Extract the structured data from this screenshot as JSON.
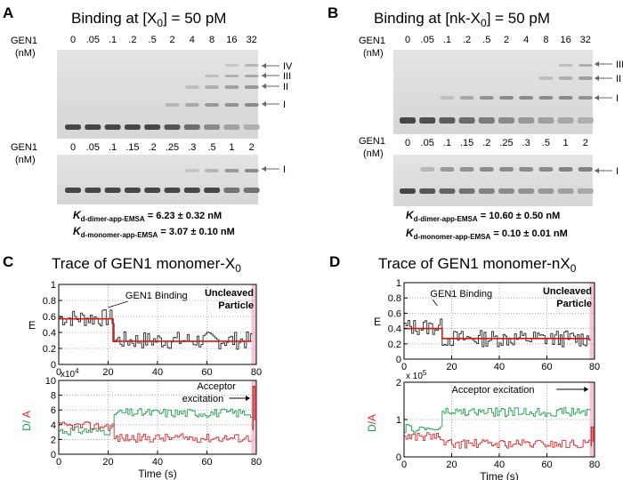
{
  "panels": {
    "A": {
      "letter": "A",
      "title": "Binding at [X",
      "title_sub": "0",
      "title_tail": "] = 50 pM",
      "row_label_1": "GEN1",
      "row_label_2": "(nM)",
      "top_lanes": [
        "0",
        ".05",
        ".1",
        ".2",
        ".5",
        "2",
        "4",
        "8",
        "16",
        "32"
      ],
      "bottom_lanes": [
        "0",
        ".05",
        ".1",
        ".15",
        ".2",
        ".25",
        ".3",
        ".5",
        "1",
        "2"
      ],
      "top_markers": [
        "IV",
        "III",
        "II",
        "I"
      ],
      "bottom_markers": [
        "I"
      ],
      "kd1_prefix": "K",
      "kd1_sub": "d-dimer-app-EMSA",
      "kd1_val": " = 6.23 ± 0.32 nM",
      "kd2_prefix": "K",
      "kd2_sub": "d-monomer-app-EMSA",
      "kd2_val": " = 3.07 ± 0.10 nM"
    },
    "B": {
      "letter": "B",
      "title": "Binding at [nk-X",
      "title_sub": "0",
      "title_tail": "] = 50 pM",
      "row_label_1": "GEN1",
      "row_label_2": "(nM)",
      "top_lanes": [
        "0",
        ".05",
        ".1",
        ".2",
        ".5",
        "2",
        "4",
        "8",
        "16",
        "32"
      ],
      "bottom_lanes": [
        "0",
        ".05",
        ".1",
        ".15",
        ".2",
        ".25",
        ".3",
        ".5",
        "1",
        "2"
      ],
      "top_markers": [
        "III",
        "II",
        "I"
      ],
      "bottom_markers": [
        "I"
      ],
      "kd1_prefix": "K",
      "kd1_sub": "d-dimer-app-EMSA",
      "kd1_val": " = 10.60 ± 0.50 nM",
      "kd2_prefix": "K",
      "kd2_sub": "d-monomer-app-EMSA",
      "kd2_val": " = 0.10 ± 0.01 nM"
    },
    "C": {
      "letter": "C",
      "title": "Trace of GEN1 monomer-X",
      "title_sub": "0",
      "e_ylabel": "E",
      "e_yticks": [
        "1",
        "0.8",
        "0.6",
        "0.4",
        "0.2",
        "0"
      ],
      "e_xticks": [
        "0",
        "20",
        "40",
        "60",
        "80"
      ],
      "binding_label": "GEN1 Binding",
      "uncleaved_1": "Uncleaved",
      "uncleaved_2": "Particle",
      "i_ylabel_d": "D/",
      "i_ylabel_a": " A",
      "i_exponent": "x10",
      "i_exponent_sup": "4",
      "i_yticks": [
        "10",
        "8",
        "6",
        "4",
        "2",
        "0"
      ],
      "i_xticks": [
        "0",
        "20",
        "40",
        "60",
        "80"
      ],
      "acceptor_1": "Acceptor",
      "acceptor_2": "excitation",
      "xlabel": "Time (s)"
    },
    "D": {
      "letter": "D",
      "title": "Trace of GEN1 monomer-nX",
      "title_sub": "0",
      "e_ylabel": "E",
      "e_yticks": [
        "1",
        "0.8",
        "0.6",
        "0.4",
        "0.2",
        "0"
      ],
      "e_xticks": [
        "0",
        "20",
        "40",
        "60",
        "80"
      ],
      "binding_label": "GEN1 Binding",
      "uncleaved_1": "Uncleaved",
      "uncleaved_2": "Particle",
      "i_ylabel_d": "D",
      "i_ylabel_a": "/A",
      "i_exponent": "x 10",
      "i_exponent_sup": "5",
      "i_yticks": [
        "2",
        "1",
        "0"
      ],
      "i_xticks": [
        "0",
        "20",
        "40",
        "60",
        "80"
      ],
      "acceptor_1": "Acceptor excitation",
      "acceptor_2": "",
      "xlabel": "Time (s)"
    }
  },
  "colors": {
    "donor": "#1a9e50",
    "acceptor": "#e0262b",
    "fit": "#d01818",
    "trace": "#222222",
    "acceptor_window": "#f6c6d6"
  },
  "chart_data": [
    {
      "id": "C-E",
      "type": "line",
      "ylabel": "E",
      "xlabel": "",
      "xlim": [
        0,
        80
      ],
      "ylim": [
        0,
        1
      ],
      "fit_steps": [
        {
          "x0": 0,
          "x1": 22,
          "y": 0.57
        },
        {
          "x0": 22,
          "x1": 78,
          "y": 0.29
        }
      ],
      "trace_mean": [
        0.58,
        0.3
      ],
      "switch_time": 22
    },
    {
      "id": "C-DA",
      "type": "line",
      "ylabel": "D/ A",
      "xlabel": "Time (s)",
      "xlim": [
        0,
        80
      ],
      "ylim": [
        0,
        10
      ],
      "series": [
        {
          "name": "D",
          "before": 3.2,
          "after": 5.6
        },
        {
          "name": "A",
          "before": 3.8,
          "after": 2.2
        }
      ],
      "switch_time": 22,
      "acceptor_excitation_start": 78
    },
    {
      "id": "D-E",
      "type": "line",
      "ylabel": "E",
      "xlabel": "",
      "xlim": [
        0,
        80
      ],
      "ylim": [
        0,
        1
      ],
      "fit_steps": [
        {
          "x0": 0,
          "x1": 16,
          "y": 0.4
        },
        {
          "x0": 16,
          "x1": 78,
          "y": 0.27
        }
      ],
      "trace_mean": [
        0.42,
        0.27
      ],
      "switch_time": 16
    },
    {
      "id": "D-DA",
      "type": "line",
      "ylabel": "D/A",
      "xlabel": "Time (s)",
      "xlim": [
        0,
        80
      ],
      "ylim": [
        0,
        2
      ],
      "series": [
        {
          "name": "D",
          "before": 0.75,
          "after": 1.2
        },
        {
          "name": "A",
          "before": 0.55,
          "after": 0.35
        }
      ],
      "switch_time": 16,
      "acceptor_excitation_start": 78
    }
  ]
}
